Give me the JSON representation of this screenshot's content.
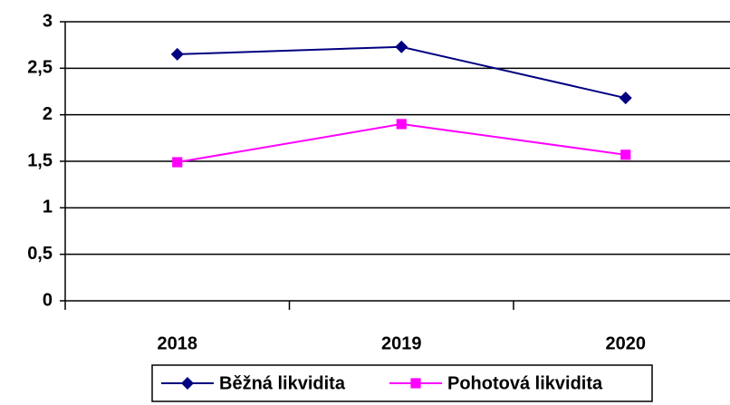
{
  "chart_data": {
    "type": "line",
    "categories": [
      "2018",
      "2019",
      "2020"
    ],
    "series": [
      {
        "name": "Běžná likvidita",
        "color": "#000080",
        "marker": "diamond",
        "values": [
          2.65,
          2.73,
          2.18
        ]
      },
      {
        "name": "Pohotová likvidita",
        "color": "#ff00ff",
        "marker": "square",
        "values": [
          1.49,
          1.9,
          1.57
        ]
      }
    ],
    "ylim": [
      0,
      3
    ],
    "yticks": [
      0,
      {
        "value": 0.5,
        "label": "0,5"
      },
      1,
      {
        "value": 1.5,
        "label": "1,5"
      },
      2,
      {
        "value": 2.5,
        "label": "2,5"
      },
      3
    ],
    "grid": true,
    "legend": "bottom"
  }
}
